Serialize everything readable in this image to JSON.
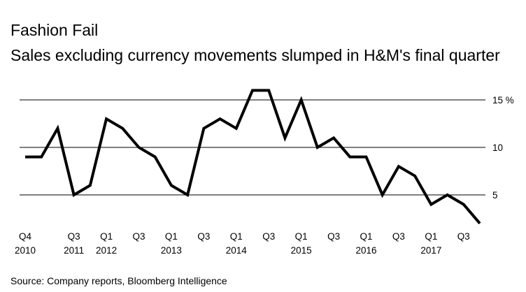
{
  "chart_data": {
    "type": "line",
    "title": "Fashion Fail",
    "subtitle": "Sales excluding currency movements slumped in H&M's final quarter",
    "source": "Source: Company reports, Bloomberg Intelligence",
    "xlabel": "",
    "ylabel": "",
    "ylim": [
      2,
      17
    ],
    "grid": true,
    "y_ticks": [
      {
        "value": 15,
        "label": "15 %"
      },
      {
        "value": 10,
        "label": "10"
      },
      {
        "value": 5,
        "label": "5"
      }
    ],
    "x_ticks": [
      {
        "index": 0,
        "line1": "Q4",
        "line2": "2010"
      },
      {
        "index": 3,
        "line1": "Q3",
        "line2": "2011"
      },
      {
        "index": 5,
        "line1": "Q1",
        "line2": "2012"
      },
      {
        "index": 7,
        "line1": "Q3",
        "line2": ""
      },
      {
        "index": 9,
        "line1": "Q1",
        "line2": "2013"
      },
      {
        "index": 11,
        "line1": "Q3",
        "line2": ""
      },
      {
        "index": 13,
        "line1": "Q1",
        "line2": "2014"
      },
      {
        "index": 15,
        "line1": "Q3",
        "line2": ""
      },
      {
        "index": 17,
        "line1": "Q1",
        "line2": "2015"
      },
      {
        "index": 19,
        "line1": "Q3",
        "line2": ""
      },
      {
        "index": 21,
        "line1": "Q1",
        "line2": "2016"
      },
      {
        "index": 23,
        "line1": "Q3",
        "line2": ""
      },
      {
        "index": 25,
        "line1": "Q1",
        "line2": "2017"
      },
      {
        "index": 27,
        "line1": "Q3",
        "line2": ""
      }
    ],
    "series": [
      {
        "name": "Sales excluding currency movements",
        "values": [
          9,
          9,
          12,
          5,
          6,
          13,
          12,
          10,
          9,
          6,
          5,
          12,
          13,
          12,
          16,
          16,
          11,
          15,
          10,
          11,
          9,
          9,
          5,
          8,
          7,
          4,
          5,
          4,
          2
        ]
      }
    ],
    "colors": {
      "line": "#000000",
      "grid": "#000000",
      "text": "#000000"
    }
  }
}
